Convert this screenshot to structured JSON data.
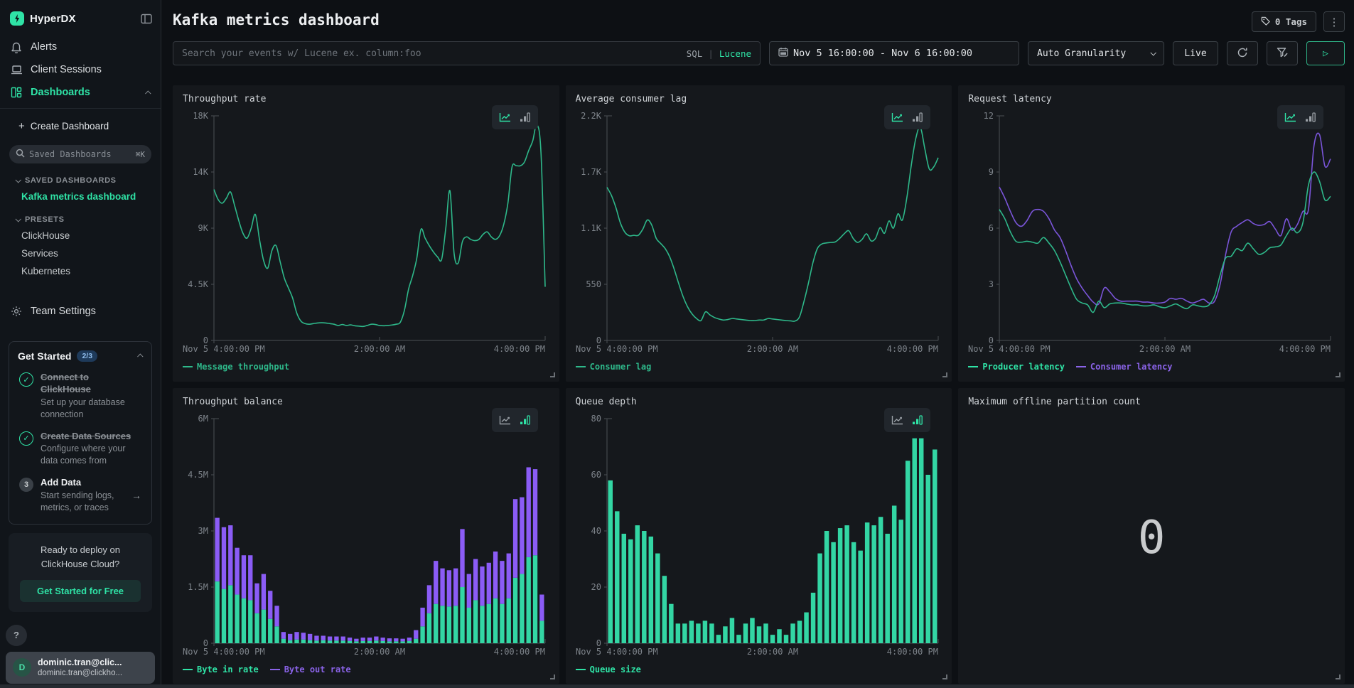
{
  "app": {
    "name": "HyperDX"
  },
  "sidebar": {
    "nav": [
      {
        "label": "Alerts",
        "icon": "bell-icon"
      },
      {
        "label": "Client Sessions",
        "icon": "laptop-icon"
      },
      {
        "label": "Dashboards",
        "icon": "dashboard-grid-icon",
        "active": true
      }
    ],
    "create_dashboard": "Create Dashboard",
    "search": {
      "placeholder": "Saved Dashboards",
      "shortcut": "⌘K"
    },
    "saved_section": "SAVED DASHBOARDS",
    "saved_items": [
      "Kafka metrics dashboard"
    ],
    "presets_section": "PRESETS",
    "preset_items": [
      "ClickHouse",
      "Services",
      "Kubernetes"
    ],
    "team_settings": "Team Settings",
    "get_started": {
      "title": "Get Started",
      "badge": "2/3",
      "steps": [
        {
          "title": "Connect to ClickHouse",
          "desc": "Set up your database connection",
          "done": true
        },
        {
          "title": "Create Data Sources",
          "desc": "Configure where your data comes from",
          "done": true
        },
        {
          "title": "Add Data",
          "desc": "Start sending logs, metrics, or traces",
          "done": false,
          "num": "3",
          "arrow": "→"
        }
      ]
    },
    "cloud_promo": {
      "line1": "Ready to deploy on",
      "line2": "ClickHouse Cloud?",
      "cta": "Get Started for Free"
    },
    "help_label": "?",
    "user": {
      "initial": "D",
      "name": "dominic.tran@clic...",
      "email": "dominic.tran@clickho..."
    }
  },
  "header": {
    "title": "Kafka metrics dashboard",
    "tags_label": "0 Tags",
    "menu_label": "⋮"
  },
  "toolbar": {
    "search_placeholder": "Search your events w/ Lucene ex. column:foo",
    "lang_sql": "SQL",
    "lang_sep": "|",
    "lang_lucene": "Lucene",
    "date_range": "Nov 5 16:00:00 - Nov 6 16:00:00",
    "granularity": "Auto Granularity",
    "live_label": "Live",
    "play_glyph": "▷"
  },
  "colors": {
    "green_line": "#2eb88a",
    "green_bar": "#33d6a4",
    "green_text": "#2fe3a6",
    "purple_line": "#7a55d9",
    "purple_bar": "#8b5cf6",
    "purple_text": "#8a63e8",
    "axis": "#4a4f55",
    "tick_text": "#7d838a"
  },
  "chart_data": [
    {
      "id": "throughput-rate",
      "title": "Throughput rate",
      "type": "line",
      "ylim": [
        0,
        18000
      ],
      "yticks": [
        "18K",
        "14K",
        "9K",
        "4.5K",
        "0"
      ],
      "xticks": [
        "Nov 5 4:00:00 PM",
        "2:00:00 AM",
        "4:00:00 PM"
      ],
      "legend_position": "bottom",
      "grid": false,
      "series": [
        {
          "name": "Message throughput",
          "color": "#2eb88a",
          "values": [
            12100,
            11300,
            11000,
            11400,
            11900,
            10800,
            9600,
            8600,
            8200,
            9000,
            10100,
            8100,
            6400,
            5800,
            7200,
            7600,
            6300,
            5000,
            4200,
            3400,
            2200,
            1550,
            1350,
            1300,
            1350,
            1400,
            1420,
            1400,
            1350,
            1300,
            1200,
            1280,
            1200,
            1250,
            1180,
            1150,
            1120,
            1200,
            1300,
            1280,
            1200,
            1180,
            1200,
            1240,
            1300,
            1450,
            2400,
            4100,
            5200,
            6600,
            8900,
            8200,
            7600,
            7100,
            6700,
            6500,
            9000,
            12000,
            7000,
            6200,
            7900,
            8300,
            8100,
            8000,
            8100,
            8500,
            8700,
            8300,
            8100,
            8400,
            9300,
            11000,
            13900,
            14000,
            14000,
            14300,
            15200,
            16000,
            17300,
            15000,
            4300
          ]
        }
      ]
    },
    {
      "id": "avg-consumer-lag",
      "title": "Average consumer lag",
      "type": "line",
      "ylim": [
        0,
        2200
      ],
      "yticks": [
        "2.2K",
        "1.7K",
        "1.1K",
        "550",
        "0"
      ],
      "xticks": [
        "Nov 5 4:00:00 PM",
        "2:00:00 AM",
        "4:00:00 PM"
      ],
      "legend_position": "bottom",
      "grid": false,
      "series": [
        {
          "name": "Consumer lag",
          "color": "#2eb88a",
          "values": [
            1500,
            1420,
            1300,
            1150,
            1060,
            1025,
            1030,
            1030,
            1090,
            1180,
            1130,
            1000,
            950,
            900,
            820,
            700,
            560,
            430,
            330,
            260,
            215,
            195,
            280,
            250,
            225,
            210,
            200,
            205,
            215,
            210,
            205,
            200,
            195,
            195,
            200,
            200,
            215,
            210,
            205,
            200,
            195,
            192,
            190,
            230,
            380,
            560,
            760,
            900,
            945,
            955,
            960,
            965,
            1000,
            1045,
            1075,
            1000,
            960,
            990,
            1045,
            975,
            1000,
            1105,
            1050,
            1170,
            1100,
            1240,
            1180,
            1400,
            1720,
            1980,
            2090,
            1880,
            1680,
            1700,
            1790
          ]
        }
      ]
    },
    {
      "id": "request-latency",
      "title": "Request latency",
      "type": "line",
      "ylim": [
        0,
        12
      ],
      "yticks": [
        "12",
        "9",
        "6",
        "3",
        "0"
      ],
      "xticks": [
        "Nov 5 4:00:00 PM",
        "2:00:00 AM",
        "4:00:00 PM"
      ],
      "legend_position": "bottom",
      "grid": false,
      "series": [
        {
          "name": "Consumer latency",
          "color": "#7a55d9",
          "legend_color": "#8a63e8",
          "values": [
            8.2,
            7.6,
            6.9,
            6.3,
            6.1,
            6.4,
            6.9,
            7.0,
            6.9,
            6.5,
            5.9,
            5.5,
            4.8,
            4.0,
            3.3,
            2.8,
            2.4,
            2.05,
            1.95,
            2.8,
            2.6,
            2.25,
            2.1,
            2.1,
            2.1,
            2.1,
            2.05,
            2.05,
            2.0,
            2.0,
            2.05,
            2.25,
            2.2,
            2.25,
            2.1,
            2.0,
            2.1,
            2.2,
            2.0,
            2.1,
            3.0,
            4.6,
            5.8,
            6.1,
            6.3,
            6.45,
            6.25,
            6.15,
            6.2,
            6.35,
            5.95,
            5.6,
            6.5,
            5.9,
            6.2,
            6.9,
            7.0,
            10.4,
            11.0,
            9.3,
            9.7
          ]
        },
        {
          "name": "Producer latency",
          "color": "#2eb88a",
          "legend_color": "#2fe3a6",
          "values": [
            7.0,
            6.5,
            5.8,
            5.3,
            5.25,
            5.3,
            5.25,
            5.2,
            5.5,
            5.2,
            4.8,
            4.2,
            3.5,
            2.8,
            2.2,
            2.0,
            1.9,
            1.5,
            2.1,
            1.75,
            1.95,
            2.0,
            2.0,
            1.95,
            1.9,
            1.9,
            1.85,
            1.85,
            1.9,
            1.8,
            1.75,
            1.85,
            1.95,
            1.8,
            1.7,
            1.9,
            1.85,
            1.8,
            1.9,
            2.4,
            3.5,
            4.4,
            4.5,
            4.9,
            4.8,
            5.2,
            4.9,
            4.6,
            4.7,
            4.95,
            5.0,
            5.1,
            5.6,
            6.0,
            5.75,
            6.3,
            8.3,
            9.0,
            8.5,
            7.5,
            7.7
          ]
        }
      ],
      "legend_order": [
        "Producer latency",
        "Consumer latency"
      ]
    },
    {
      "id": "throughput-balance",
      "title": "Throughput balance",
      "type": "stacked-bar",
      "unit": "M",
      "ylim": [
        0,
        6
      ],
      "yticks": [
        "6M",
        "4.5M",
        "3M",
        "1.5M",
        "0"
      ],
      "xticks": [
        "Nov 5 4:00:00 PM",
        "2:00:00 AM",
        "4:00:00 PM"
      ],
      "legend_position": "bottom",
      "grid": false,
      "series": [
        {
          "name": "Byte in rate",
          "color": "#33d6a4",
          "legend_color": "#2fe3a6",
          "values": [
            1.65,
            1.45,
            1.55,
            1.3,
            1.2,
            1.15,
            0.8,
            0.9,
            0.65,
            0.45,
            0.12,
            0.08,
            0.1,
            0.1,
            0.08,
            0.07,
            0.08,
            0.07,
            0.07,
            0.07,
            0.06,
            0.05,
            0.06,
            0.06,
            0.07,
            0.06,
            0.05,
            0.05,
            0.05,
            0.06,
            0.12,
            0.45,
            0.8,
            1.05,
            1.0,
            0.98,
            1.0,
            1.5,
            0.95,
            1.15,
            1.0,
            1.05,
            1.2,
            1.05,
            1.2,
            1.75,
            1.85,
            2.3,
            2.35,
            0.6
          ]
        },
        {
          "name": "Byte out rate",
          "color": "#8b5cf6",
          "legend_color": "#8a63e8",
          "values": [
            1.7,
            1.65,
            1.6,
            1.25,
            1.15,
            1.2,
            0.8,
            0.95,
            0.75,
            0.55,
            0.18,
            0.17,
            0.2,
            0.18,
            0.17,
            0.13,
            0.12,
            0.11,
            0.11,
            0.11,
            0.09,
            0.07,
            0.09,
            0.09,
            0.11,
            0.09,
            0.08,
            0.08,
            0.07,
            0.09,
            0.23,
            0.5,
            0.75,
            1.15,
            1.0,
            0.97,
            1.0,
            1.55,
            0.9,
            1.1,
            1.05,
            1.1,
            1.25,
            1.15,
            1.2,
            2.1,
            2.05,
            2.4,
            2.3,
            0.7
          ]
        }
      ]
    },
    {
      "id": "queue-depth",
      "title": "Queue depth",
      "type": "bar",
      "ylim": [
        0,
        80
      ],
      "yticks": [
        "80",
        "60",
        "40",
        "20",
        "0"
      ],
      "xticks": [
        "Nov 5 4:00:00 PM",
        "2:00:00 AM",
        "4:00:00 PM"
      ],
      "legend_position": "bottom",
      "grid": false,
      "series": [
        {
          "name": "Queue size",
          "color": "#33d6a4",
          "legend_color": "#2fe3a6",
          "values": [
            58,
            47,
            39,
            37,
            42,
            40,
            38,
            32,
            24,
            14,
            7,
            7,
            8,
            7,
            8,
            7,
            3,
            6,
            9,
            3,
            7,
            9,
            6,
            7,
            3,
            5,
            3,
            7,
            8,
            11,
            18,
            32,
            40,
            36,
            41,
            42,
            36,
            33,
            43,
            42,
            45,
            39,
            49,
            44,
            65,
            73,
            73,
            60,
            69
          ]
        }
      ]
    },
    {
      "id": "max-offline-partition-count",
      "title": "Maximum offline partition count",
      "type": "number",
      "value": "0"
    }
  ]
}
